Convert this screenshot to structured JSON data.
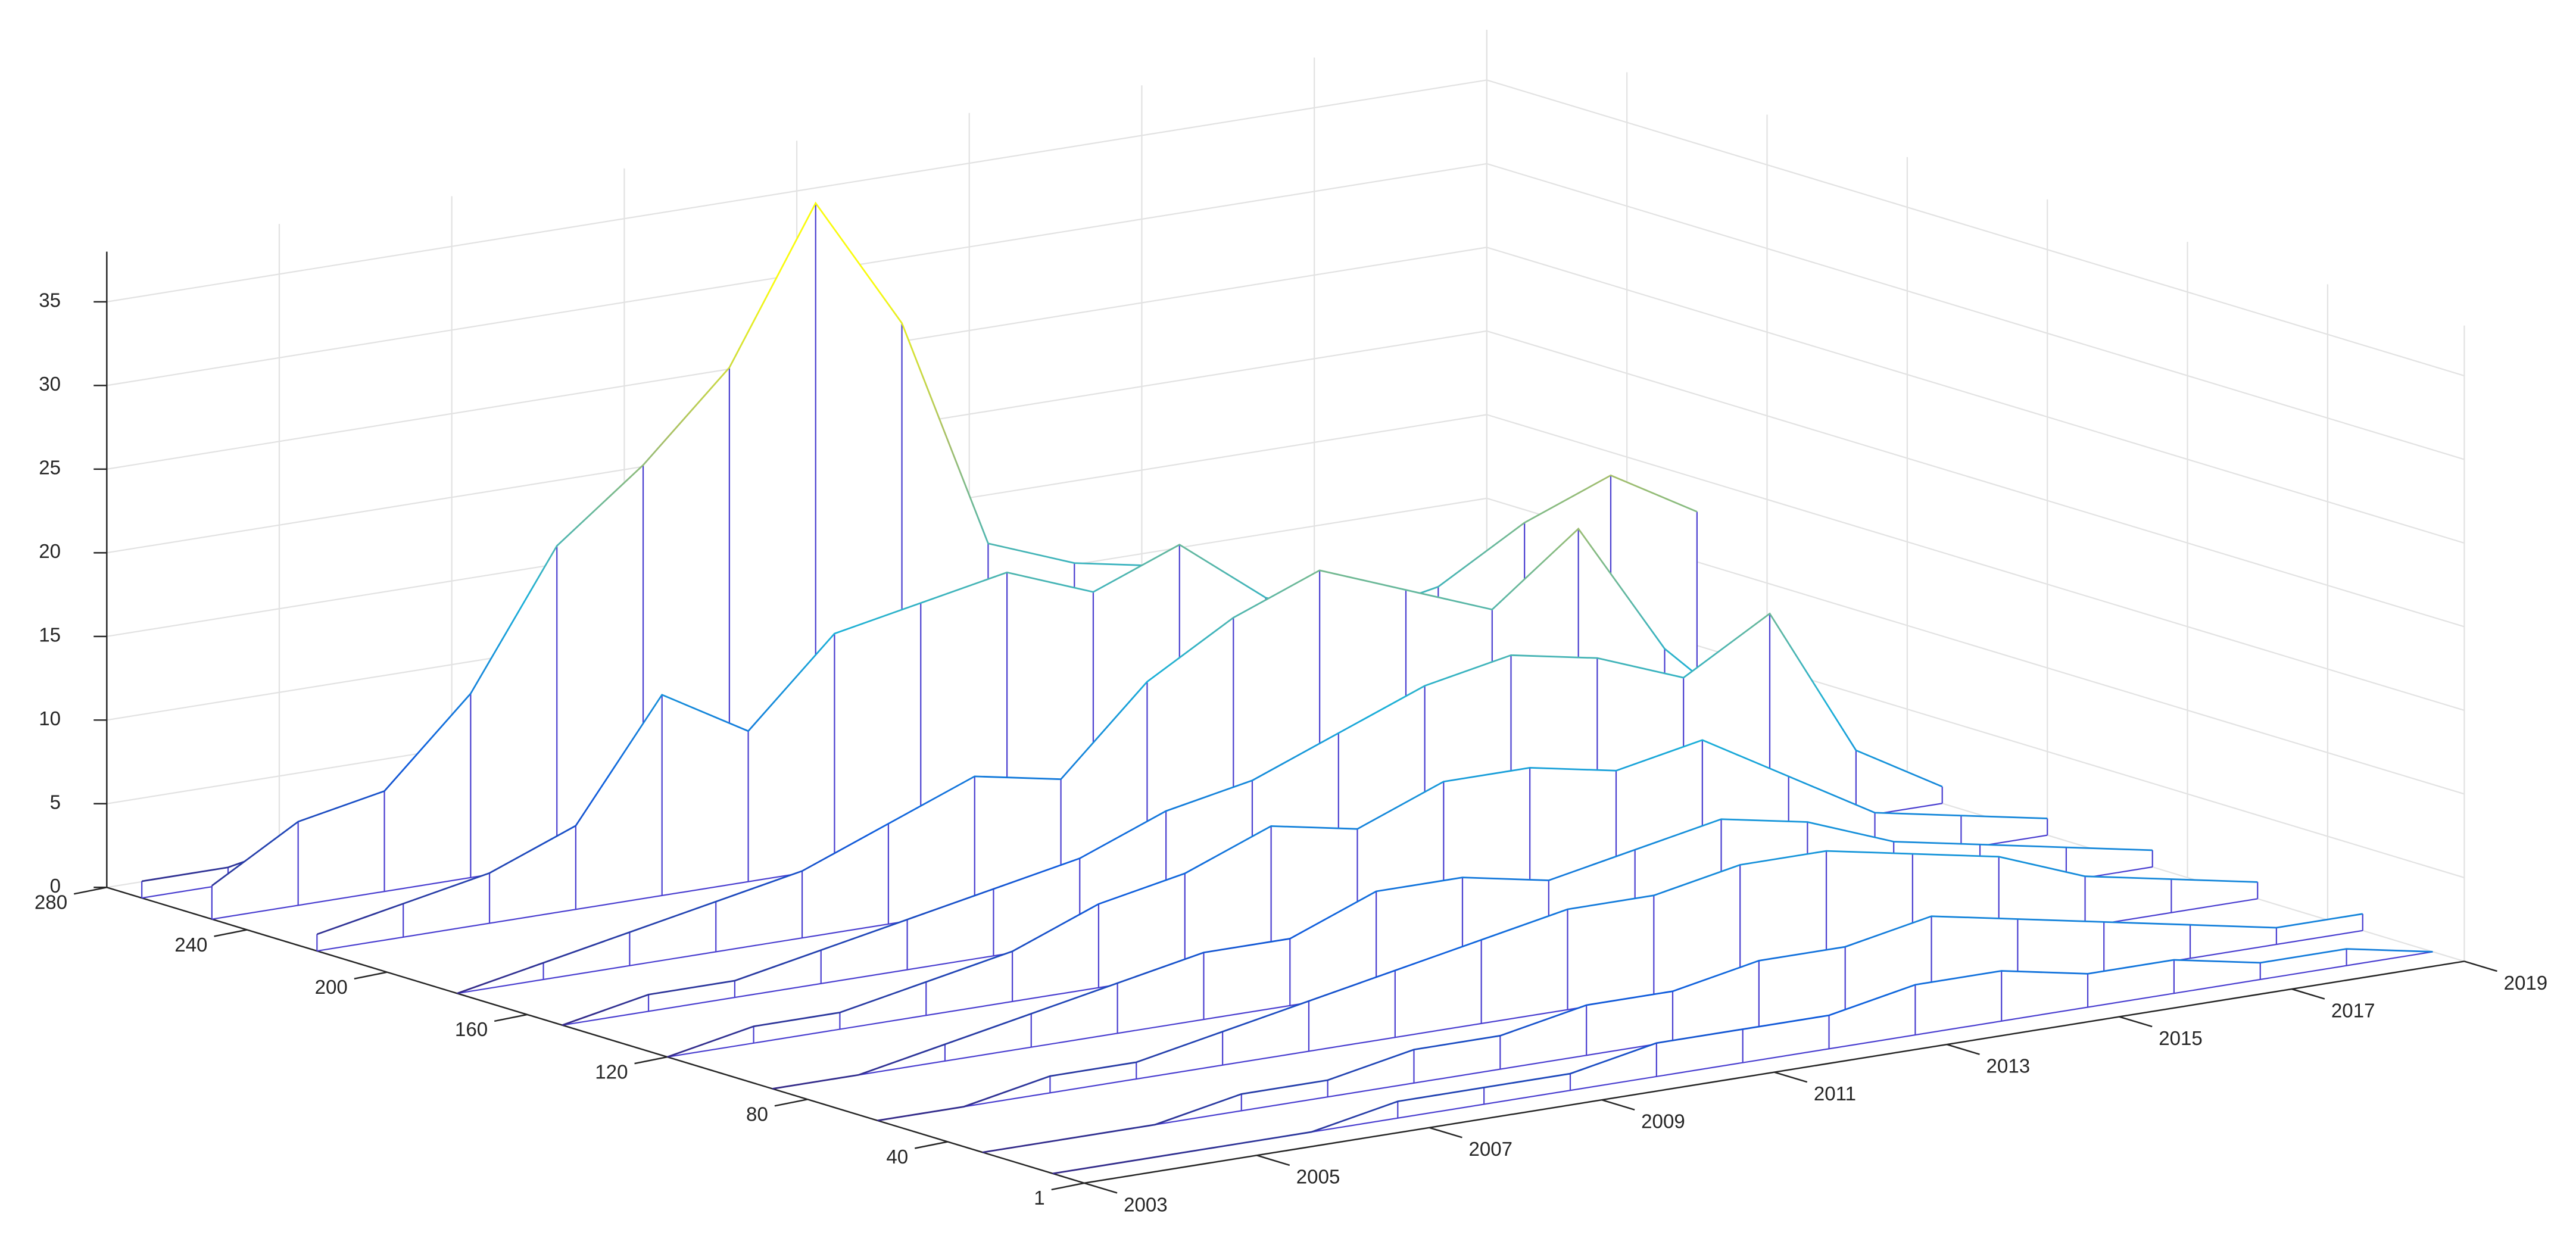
{
  "chart_data": {
    "type": "mesh3d",
    "x": [
      2003,
      2004,
      2005,
      2006,
      2007,
      2008,
      2009,
      2010,
      2011,
      2012,
      2013,
      2014,
      2015,
      2016,
      2017,
      2018,
      2019
    ],
    "xlim": [
      2003,
      2019
    ],
    "xticks": [
      2003,
      2005,
      2007,
      2009,
      2011,
      2013,
      2015,
      2017,
      2019
    ],
    "ylim": [
      1,
      280
    ],
    "yticks": [
      1,
      40,
      80,
      120,
      160,
      200,
      240,
      280
    ],
    "zlim": [
      0,
      38
    ],
    "zticks": [
      0,
      5,
      10,
      15,
      20,
      25,
      30,
      35
    ],
    "grid": true,
    "colormap": [
      "#352a87",
      "#0f5cdd",
      "#1ab0d8",
      "#a5be6a",
      "#f9fb0e"
    ],
    "series": [
      {
        "row": 270,
        "values": [
          1,
          1,
          2,
          3,
          3,
          2,
          2,
          1,
          1,
          1,
          1,
          1,
          0,
          0,
          0,
          0,
          0
        ]
      },
      {
        "row": 250,
        "values": [
          2,
          5,
          6,
          11,
          19,
          23,
          28,
          37,
          29,
          15,
          13,
          12,
          8,
          5,
          3,
          2,
          1
        ]
      },
      {
        "row": 220,
        "values": [
          1,
          2,
          3,
          5,
          12,
          9,
          14,
          15,
          16,
          14,
          16,
          12,
          10,
          11,
          14,
          16,
          13
        ]
      },
      {
        "row": 180,
        "values": [
          0,
          1,
          2,
          3,
          4,
          6,
          8,
          7,
          12,
          15,
          17,
          15,
          13,
          17,
          9,
          4,
          2
        ]
      },
      {
        "row": 150,
        "values": [
          0,
          1,
          1,
          2,
          3,
          4,
          5,
          7,
          8,
          10,
          12,
          13,
          12,
          10,
          13,
          4,
          1
        ]
      },
      {
        "row": 120,
        "values": [
          0,
          1,
          1,
          2,
          3,
          5,
          6,
          8,
          7,
          9,
          9,
          8,
          9,
          6,
          3,
          2,
          1
        ]
      },
      {
        "row": 90,
        "values": [
          0,
          0,
          1,
          2,
          3,
          4,
          4,
          6,
          6,
          5,
          6,
          7,
          6,
          4,
          3,
          2,
          1
        ]
      },
      {
        "row": 60,
        "values": [
          0,
          0,
          1,
          1,
          2,
          3,
          4,
          5,
          6,
          6,
          7,
          7,
          6,
          5,
          3,
          2,
          1
        ]
      },
      {
        "row": 30,
        "values": [
          0,
          0,
          0,
          1,
          1,
          2,
          2,
          3,
          3,
          4,
          4,
          5,
          4,
          3,
          2,
          1,
          1
        ]
      },
      {
        "row": 10,
        "values": [
          0,
          0,
          0,
          0,
          1,
          1,
          1,
          2,
          2,
          2,
          3,
          3,
          2,
          2,
          1,
          1,
          0
        ]
      }
    ]
  }
}
